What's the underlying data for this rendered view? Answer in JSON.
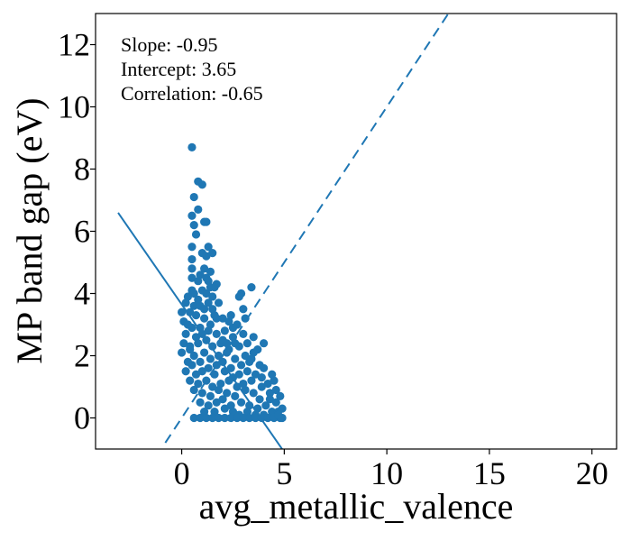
{
  "chart_data": {
    "type": "scatter",
    "title": "",
    "xlabel": "avg_metallic_valence",
    "ylabel": "MP band gap (eV)",
    "xlim": [
      -4.2,
      21.2
    ],
    "ylim": [
      -1.0,
      13.0
    ],
    "x_ticks": [
      0,
      5,
      10,
      15,
      20
    ],
    "y_ticks": [
      0,
      2,
      4,
      6,
      8,
      10,
      12
    ],
    "x_tick_labels": [
      "0",
      "5",
      "10",
      "15",
      "20"
    ],
    "y_tick_labels": [
      "0",
      "2",
      "4",
      "6",
      "8",
      "10",
      "12"
    ],
    "grid": false,
    "point_color": "#1f77b4",
    "annotations": [
      "Slope: -0.95",
      "Intercept: 3.65",
      "Correlation: -0.65"
    ],
    "fit_line": {
      "slope": -0.95,
      "intercept": 3.65,
      "x_range": [
        -3.1,
        5.0
      ],
      "style": "solid"
    },
    "identity_line": {
      "slope": 1,
      "intercept": 0,
      "x_range": [
        -0.8,
        13.0
      ],
      "style": "dashed"
    },
    "series": [
      {
        "points": [
          [
            0.5,
            8.7
          ],
          [
            0.8,
            7.6
          ],
          [
            1.0,
            7.5
          ],
          [
            0.6,
            7.1
          ],
          [
            0.5,
            6.5
          ],
          [
            0.8,
            6.7
          ],
          [
            0.6,
            6.2
          ],
          [
            1.1,
            6.3
          ],
          [
            1.2,
            6.3
          ],
          [
            0.7,
            5.9
          ],
          [
            1.3,
            5.5
          ],
          [
            1.5,
            5.3
          ],
          [
            0.5,
            5.5
          ],
          [
            0.5,
            5.1
          ],
          [
            1.0,
            5.3
          ],
          [
            1.2,
            5.2
          ],
          [
            0.5,
            4.8
          ],
          [
            1.1,
            4.8
          ],
          [
            0.9,
            4.6
          ],
          [
            1.4,
            4.7
          ],
          [
            0.5,
            4.5
          ],
          [
            0.8,
            4.4
          ],
          [
            1.3,
            4.4
          ],
          [
            1.7,
            4.3
          ],
          [
            0.5,
            4.1
          ],
          [
            0.6,
            4.0
          ],
          [
            1.0,
            4.1
          ],
          [
            1.2,
            4.0
          ],
          [
            1.6,
            4.2
          ],
          [
            1.5,
            3.9
          ],
          [
            0.3,
            3.9
          ],
          [
            0.2,
            3.7
          ],
          [
            0.6,
            3.6
          ],
          [
            0.9,
            3.6
          ],
          [
            1.3,
            3.7
          ],
          [
            1.8,
            3.7
          ],
          [
            0.0,
            3.4
          ],
          [
            0.4,
            3.4
          ],
          [
            0.7,
            3.3
          ],
          [
            1.1,
            3.2
          ],
          [
            1.6,
            3.3
          ],
          [
            2.0,
            3.2
          ],
          [
            0.1,
            3.1
          ],
          [
            0.3,
            3.0
          ],
          [
            0.5,
            2.9
          ],
          [
            0.9,
            2.9
          ],
          [
            1.4,
            3.0
          ],
          [
            2.3,
            3.1
          ],
          [
            0.2,
            2.7
          ],
          [
            0.7,
            2.6
          ],
          [
            1.0,
            2.7
          ],
          [
            1.2,
            2.5
          ],
          [
            1.7,
            2.7
          ],
          [
            2.1,
            2.8
          ],
          [
            2.5,
            2.6
          ],
          [
            3.0,
            2.7
          ],
          [
            0.1,
            2.4
          ],
          [
            0.4,
            2.3
          ],
          [
            0.8,
            2.4
          ],
          [
            1.5,
            2.3
          ],
          [
            1.9,
            2.4
          ],
          [
            2.3,
            2.2
          ],
          [
            2.8,
            2.3
          ],
          [
            3.2,
            2.4
          ],
          [
            0.0,
            2.1
          ],
          [
            0.6,
            2.0
          ],
          [
            1.1,
            2.1
          ],
          [
            1.4,
            1.9
          ],
          [
            1.8,
            2.0
          ],
          [
            2.2,
            2.1
          ],
          [
            2.6,
            1.9
          ],
          [
            3.1,
            2.0
          ],
          [
            3.5,
            2.1
          ],
          [
            0.3,
            1.8
          ],
          [
            0.5,
            1.7
          ],
          [
            0.9,
            1.8
          ],
          [
            1.3,
            1.6
          ],
          [
            1.7,
            1.7
          ],
          [
            2.0,
            1.8
          ],
          [
            2.4,
            1.6
          ],
          [
            2.9,
            1.7
          ],
          [
            3.3,
            1.8
          ],
          [
            3.8,
            1.7
          ],
          [
            0.2,
            1.5
          ],
          [
            0.7,
            1.4
          ],
          [
            1.0,
            1.5
          ],
          [
            1.6,
            1.4
          ],
          [
            2.1,
            1.5
          ],
          [
            2.5,
            1.3
          ],
          [
            2.8,
            1.4
          ],
          [
            3.2,
            1.5
          ],
          [
            3.6,
            1.4
          ],
          [
            4.0,
            1.6
          ],
          [
            0.4,
            1.2
          ],
          [
            0.8,
            1.1
          ],
          [
            1.2,
            1.2
          ],
          [
            1.5,
            1.0
          ],
          [
            1.9,
            1.1
          ],
          [
            2.3,
            1.2
          ],
          [
            2.7,
            1.0
          ],
          [
            3.0,
            1.1
          ],
          [
            3.4,
            1.2
          ],
          [
            3.9,
            1.0
          ],
          [
            4.2,
            1.1
          ],
          [
            0.6,
            0.9
          ],
          [
            1.0,
            0.8
          ],
          [
            1.4,
            0.7
          ],
          [
            1.8,
            0.9
          ],
          [
            2.2,
            0.8
          ],
          [
            2.6,
            0.7
          ],
          [
            3.1,
            0.9
          ],
          [
            3.5,
            0.8
          ],
          [
            3.8,
            0.6
          ],
          [
            4.3,
            0.8
          ],
          [
            4.5,
            1.2
          ],
          [
            0.9,
            0.5
          ],
          [
            1.3,
            0.4
          ],
          [
            1.7,
            0.5
          ],
          [
            2.0,
            0.6
          ],
          [
            2.4,
            0.4
          ],
          [
            2.9,
            0.5
          ],
          [
            3.3,
            0.4
          ],
          [
            3.7,
            0.3
          ],
          [
            4.1,
            0.4
          ],
          [
            4.6,
            0.5
          ],
          [
            4.8,
            0.7
          ],
          [
            1.1,
            0.2
          ],
          [
            1.6,
            0.2
          ],
          [
            2.1,
            0.3
          ],
          [
            2.5,
            0.2
          ],
          [
            2.8,
            0.1
          ],
          [
            3.2,
            0.2
          ],
          [
            3.6,
            0.1
          ],
          [
            4.0,
            0.1
          ],
          [
            4.4,
            0.2
          ],
          [
            4.7,
            0.2
          ],
          [
            0.6,
            0.0
          ],
          [
            0.9,
            0.0
          ],
          [
            1.2,
            0.0
          ],
          [
            1.5,
            0.0
          ],
          [
            1.8,
            0.0
          ],
          [
            2.1,
            0.0
          ],
          [
            2.4,
            0.0
          ],
          [
            2.7,
            0.0
          ],
          [
            3.0,
            0.0
          ],
          [
            3.3,
            0.0
          ],
          [
            3.6,
            0.0
          ],
          [
            3.9,
            0.0
          ],
          [
            4.2,
            0.0
          ],
          [
            4.5,
            0.0
          ],
          [
            4.8,
            0.0
          ],
          [
            4.9,
            0.3
          ],
          [
            4.9,
            0.0
          ],
          [
            2.5,
            2.9
          ],
          [
            2.2,
            2.4
          ],
          [
            2.9,
            4.0
          ],
          [
            3.4,
            4.2
          ],
          [
            2.8,
            3.9
          ],
          [
            1.7,
            3.2
          ],
          [
            2.4,
            3.3
          ],
          [
            3.0,
            3.5
          ],
          [
            0.4,
            2.2
          ],
          [
            1.3,
            2.8
          ],
          [
            2.0,
            2.5
          ],
          [
            2.6,
            2.4
          ],
          [
            3.4,
            1.9
          ],
          [
            3.7,
            2.2
          ],
          [
            1.1,
            3.5
          ],
          [
            0.8,
            3.8
          ],
          [
            1.2,
            4.5
          ],
          [
            1.4,
            4.2
          ],
          [
            1.5,
            3.5
          ],
          [
            2.7,
            3.0
          ],
          [
            3.1,
            3.2
          ],
          [
            3.5,
            2.6
          ],
          [
            4.0,
            2.4
          ],
          [
            3.9,
            1.3
          ],
          [
            4.4,
            1.4
          ],
          [
            4.6,
            0.9
          ],
          [
            4.3,
            0.6
          ],
          [
            4.7,
            0.1
          ]
        ]
      }
    ]
  }
}
